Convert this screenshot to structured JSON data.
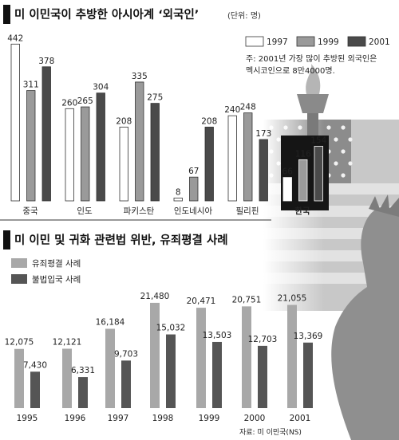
{
  "header1": {
    "title": "미 이민국이 추방한 아시아계 ‘외국인’",
    "unit": "(단위: 명)"
  },
  "note": {
    "line1": "주: 2001년 가장 많이 추방된 외국인은",
    "line2": "멕시코인으로 8만4000명."
  },
  "header2": {
    "title": "미 이민 및 귀화 관련법 위반, 유죄평결 사례"
  },
  "source": "자료: 미 이민국(NS)",
  "colors": {
    "y1997": "#ffffff",
    "y1999": "#9a9a9a",
    "y2001": "#4a4a4a",
    "conviction": "#a8a8a8",
    "illegal": "#555555",
    "korea_bg": "#151515"
  },
  "chart_data": [
    {
      "type": "bar",
      "title": "미 이민국이 추방한 아시아계 ‘외국인’",
      "unit": "(단위: 명)",
      "categories": [
        "중국",
        "인도",
        "파키스탄",
        "인도네시아",
        "필리핀",
        "한국"
      ],
      "series": [
        {
          "name": "1997",
          "values": [
            442,
            260,
            208,
            8,
            240,
            66
          ]
        },
        {
          "name": "1999",
          "values": [
            311,
            265,
            335,
            67,
            248,
            116
          ]
        },
        {
          "name": "2001",
          "values": [
            378,
            304,
            275,
            208,
            173,
            154
          ]
        }
      ],
      "legend": {
        "position": "top-right"
      },
      "highlight_category": "한국"
    },
    {
      "type": "bar",
      "title": "미 이민 및 귀화 관련법 위반, 유죄평결 사례",
      "categories": [
        "1995",
        "1996",
        "1997",
        "1998",
        "1999",
        "2000",
        "2001"
      ],
      "series": [
        {
          "name": "유죄평결 사례",
          "values": [
            12075,
            12121,
            16184,
            21480,
            20471,
            20751,
            21055
          ]
        },
        {
          "name": "불법입국 사례",
          "values": [
            7430,
            6331,
            9703,
            15032,
            13503,
            12703,
            13369
          ]
        }
      ],
      "legend": {
        "position": "top-left"
      }
    }
  ]
}
